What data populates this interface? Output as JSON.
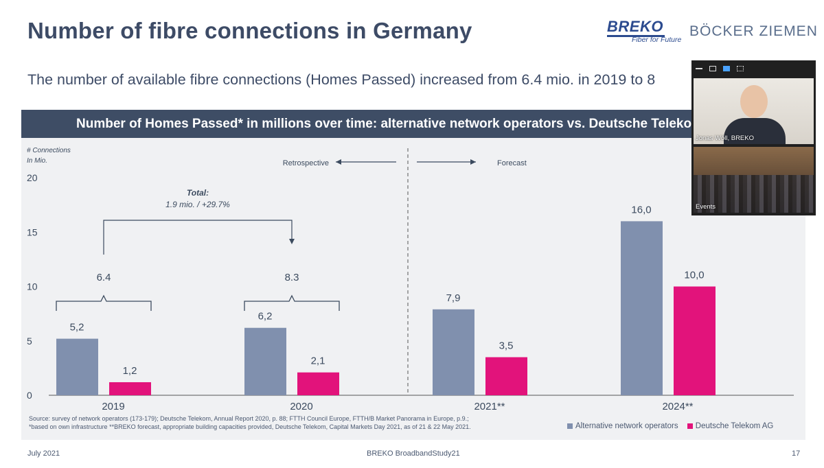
{
  "header": {
    "title": "Number of fibre connections in Germany",
    "subtitle": "The number of available fibre connections (Homes Passed) increased from 6.4 mio. in 2019 to 8",
    "brand": "BREKO",
    "brand_tagline": "Fiber for Future",
    "partner": "BÖCKER ZIEMEN"
  },
  "banner": {
    "text": "Number of Homes Passed* in millions over time: alternative network operators vs. Deutsche Telekom AG"
  },
  "chart_data": {
    "type": "bar",
    "title": "Number of Homes Passed* in millions over time: alternative network operators vs. Deutsche Telekom AG",
    "ylabel": "# Connections In Mio.",
    "ylabel_lines": [
      "# Connections",
      "In Mio."
    ],
    "ylim": [
      0,
      20
    ],
    "yticks": [
      0,
      5,
      10,
      15,
      20
    ],
    "categories": [
      "2019",
      "2020",
      "2021**",
      "2024**"
    ],
    "series": [
      {
        "name": "Alternative network operators",
        "values": [
          5.2,
          6.2,
          7.9,
          16.0
        ],
        "labels": [
          "5,2",
          "6,2",
          "7,9",
          "16,0"
        ],
        "color": "#8090ae"
      },
      {
        "name": "Deutsche Telekom AG",
        "values": [
          1.2,
          2.1,
          3.5,
          10.0
        ],
        "labels": [
          "1,2",
          "2,1",
          "3,5",
          "10,0"
        ],
        "color": "#e2137b"
      }
    ],
    "totals": [
      {
        "category": "2019",
        "label": "6.4"
      },
      {
        "category": "2020",
        "label": "8.3"
      }
    ],
    "growth_annotation": {
      "title": "Total:",
      "text": "1.9 mio. / +29.7%"
    },
    "divider": {
      "left_label": "Retrospective",
      "right_label": "Forecast"
    },
    "grid": false,
    "legend": "bottom-right"
  },
  "source": {
    "line1": "Source: survey of network operators (173-179); Deutsche Telekom, Annual Report 2020, p. 88; FTTH Council Europe, FTTH/B Market Panorama in Europe, p.9.;",
    "line2": "*based on own infrastructure **BREKO forecast, appropriate building capacities provided, Deutsche Telekom, Capital Markets Day 2021, as of 21 & 22 May 2021."
  },
  "footer": {
    "date": "July 2021",
    "study": "BREKO BroadbandStudy21",
    "page": "17"
  },
  "video": {
    "participant1": "Jonas Wöll, BREKO",
    "participant2": "Events"
  }
}
